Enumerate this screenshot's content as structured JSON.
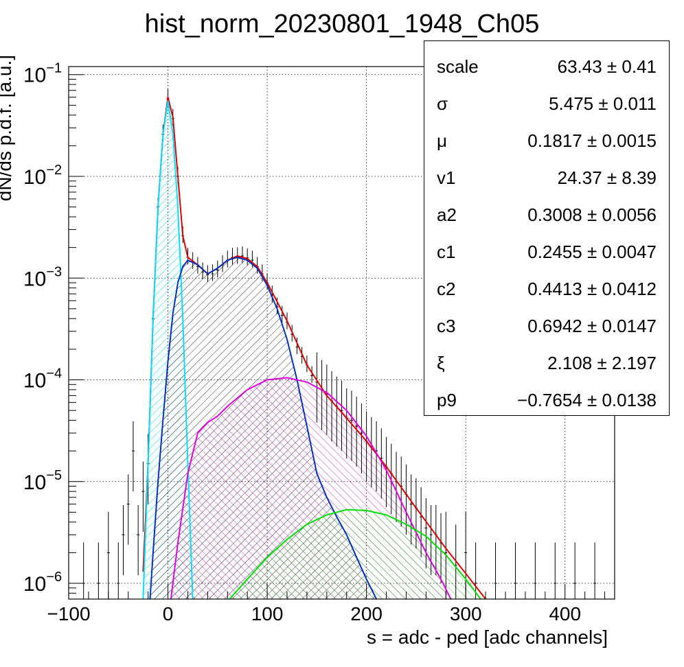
{
  "chart_data": {
    "type": "line",
    "title": "hist_norm_20230801_1948_Ch05",
    "xlabel": "s = adc - ped [adc channels]",
    "ylabel": "dN/ds p.d.f. [a.u.]",
    "xlim": [
      -100,
      450
    ],
    "ylim": [
      7e-07,
      0.12
    ],
    "yscale": "log",
    "grid": true,
    "x_ticks": [
      -100,
      0,
      100,
      200,
      300,
      400
    ],
    "x_tick_labels": [
      "−100",
      "0",
      "100",
      "200",
      "300",
      "400"
    ],
    "y_ticks": [
      {
        "value": 1e-06,
        "mantissa": "10",
        "exp": "−6"
      },
      {
        "value": 1e-05,
        "mantissa": "10",
        "exp": "−5"
      },
      {
        "value": 0.0001,
        "mantissa": "10",
        "exp": "−4"
      },
      {
        "value": 0.001,
        "mantissa": "10",
        "exp": "−3"
      },
      {
        "value": 0.01,
        "mantissa": "10",
        "exp": "−2"
      },
      {
        "value": 0.1,
        "mantissa": "10",
        "exp": "−1"
      }
    ],
    "series": [
      {
        "color": "#e00000",
        "role": "total fit",
        "x": [
          -25,
          -20,
          -15,
          -10,
          -5,
          0,
          5,
          10,
          15,
          20,
          30,
          40,
          50,
          60,
          70,
          80,
          90,
          100,
          120,
          140,
          160,
          180,
          200,
          220,
          250,
          280,
          300,
          320
        ],
        "y": [
          1.3e-06,
          1.5e-05,
          0.0004,
          0.005,
          0.026,
          0.06,
          0.038,
          0.01,
          0.0026,
          0.0016,
          0.00135,
          0.0011,
          0.00125,
          0.0015,
          0.00165,
          0.00155,
          0.0013,
          0.0009,
          0.00038,
          0.00014,
          7e-05,
          4.2e-05,
          2.5e-05,
          1.4e-05,
          5.5e-06,
          2.2e-06,
          1.25e-06,
          7e-07
        ]
      },
      {
        "color": "#00e0ff",
        "role": "pedestal component",
        "fill": "hatched",
        "x": [
          -25,
          -20,
          -15,
          -10,
          -5,
          0,
          5,
          10,
          15,
          20,
          25
        ],
        "y": [
          7e-07,
          1.5e-05,
          0.0004,
          0.005,
          0.026,
          0.055,
          0.026,
          0.005,
          0.0004,
          1.5e-05,
          7e-07
        ]
      },
      {
        "color": "#0030c0",
        "role": "1st component",
        "fill": "hatched",
        "x": [
          -18,
          -15,
          -10,
          -5,
          0,
          5,
          10,
          15,
          20,
          30,
          40,
          50,
          60,
          70,
          80,
          90,
          100,
          110,
          120,
          130,
          140,
          150,
          160,
          170,
          180,
          190,
          200,
          210
        ],
        "y": [
          7e-07,
          2e-06,
          1e-05,
          4e-05,
          0.00015,
          0.00045,
          0.0009,
          0.0013,
          0.0015,
          0.00135,
          0.0011,
          0.00125,
          0.0015,
          0.0016,
          0.0015,
          0.00125,
          0.00085,
          0.0005,
          0.00025,
          0.0001,
          3.5e-05,
          1.2e-05,
          7e-06,
          4.5e-06,
          3e-06,
          1.8e-06,
          1.1e-06,
          7e-07
        ]
      },
      {
        "color": "#e000e0",
        "role": "2nd component",
        "fill": "hatched",
        "x": [
          3,
          10,
          20,
          30,
          40,
          50,
          60,
          80,
          100,
          120,
          140,
          160,
          180,
          200,
          220,
          240,
          260,
          275,
          285
        ],
        "y": [
          7e-07,
          2.5e-06,
          1.2e-05,
          3e-05,
          3.8e-05,
          4.4e-05,
          5.5e-05,
          8e-05,
          0.0001,
          0.000105,
          9.5e-05,
          7.5e-05,
          5e-05,
          2.8e-05,
          1.3e-05,
          5e-06,
          2e-06,
          1.1e-06,
          7e-07
        ]
      },
      {
        "color": "#00e000",
        "role": "3rd component",
        "fill": "hatched",
        "x": [
          62,
          80,
          100,
          120,
          140,
          160,
          180,
          200,
          220,
          240,
          260,
          280,
          300,
          315
        ],
        "y": [
          7e-07,
          1.1e-06,
          1.8e-06,
          2.7e-06,
          3.8e-06,
          4.7e-06,
          5.3e-06,
          5.2e-06,
          4.7e-06,
          3.8e-06,
          2.9e-06,
          1.9e-06,
          1.1e-06,
          7e-07
        ]
      }
    ],
    "data_points": {
      "color": "#000000",
      "role": "histogram with error bars",
      "x": [
        -85,
        -70,
        -60,
        -50,
        -45,
        -40,
        -35,
        -30,
        -25,
        -20,
        -15,
        -10,
        -5,
        0,
        5,
        10,
        15,
        20,
        25,
        30,
        35,
        40,
        45,
        50,
        55,
        60,
        65,
        70,
        75,
        80,
        85,
        90,
        95,
        100,
        105,
        110,
        115,
        120,
        125,
        130,
        135,
        140,
        145,
        150,
        155,
        160,
        165,
        170,
        175,
        180,
        185,
        190,
        195,
        200,
        205,
        210,
        215,
        220,
        225,
        230,
        235,
        240,
        245,
        250,
        255,
        260,
        265,
        270,
        275,
        280,
        290,
        300,
        310,
        330,
        350,
        370,
        390,
        410,
        430
      ],
      "y": [
        1e-06,
        1e-06,
        2e-06,
        1e-06,
        3e-06,
        6e-06,
        2e-05,
        3e-06,
        8e-06,
        1.5e-05,
        0.0004,
        0.005,
        0.026,
        0.058,
        0.037,
        0.01,
        0.0026,
        0.0016,
        0.00145,
        0.0013,
        0.00115,
        0.00108,
        0.0011,
        0.0012,
        0.00135,
        0.0015,
        0.0016,
        0.00162,
        0.00165,
        0.00158,
        0.0015,
        0.0013,
        0.0011,
        0.0009,
        0.00068,
        0.00052,
        0.00043,
        0.00037,
        0.00028,
        0.00021,
        0.00017,
        0.00014,
        0.00011,
        9.5e-05,
        8e-05,
        7.2e-05,
        6.2e-05,
        5.5e-05,
        5e-05,
        4.2e-05,
        4e-05,
        3.5e-05,
        3e-05,
        2.5e-05,
        2.2e-05,
        2e-05,
        1.7e-05,
        1.4e-05,
        1.2e-05,
        1e-05,
        9e-06,
        7.5e-06,
        6e-06,
        5.5e-06,
        4.5e-06,
        3.5e-06,
        3e-06,
        3e-06,
        2.5e-06,
        2e-06,
        1.5e-06,
        2e-06,
        1e-06,
        1e-06,
        1e-06,
        1e-06,
        1e-06,
        1e-06,
        1e-06
      ]
    }
  },
  "stats_box": {
    "rows": [
      {
        "name": "scale",
        "value": "63.43 ± 0.41"
      },
      {
        "name": "σ",
        "value": "5.475 ± 0.011"
      },
      {
        "name": "μ",
        "value": "0.1817 ± 0.0015"
      },
      {
        "name": "v1",
        "value": "24.37 ± 8.39"
      },
      {
        "name": "a2",
        "value": "0.3008 ± 0.0056"
      },
      {
        "name": "c1",
        "value": "0.2455 ± 0.0047"
      },
      {
        "name": "c2",
        "value": "0.4413 ± 0.0412"
      },
      {
        "name": "c3",
        "value": "0.6942 ± 0.0147"
      },
      {
        "name": "ξ",
        "value": "2.108 ± 2.197"
      },
      {
        "name": "p9",
        "value": "−0.7654 ± 0.0138"
      }
    ]
  }
}
